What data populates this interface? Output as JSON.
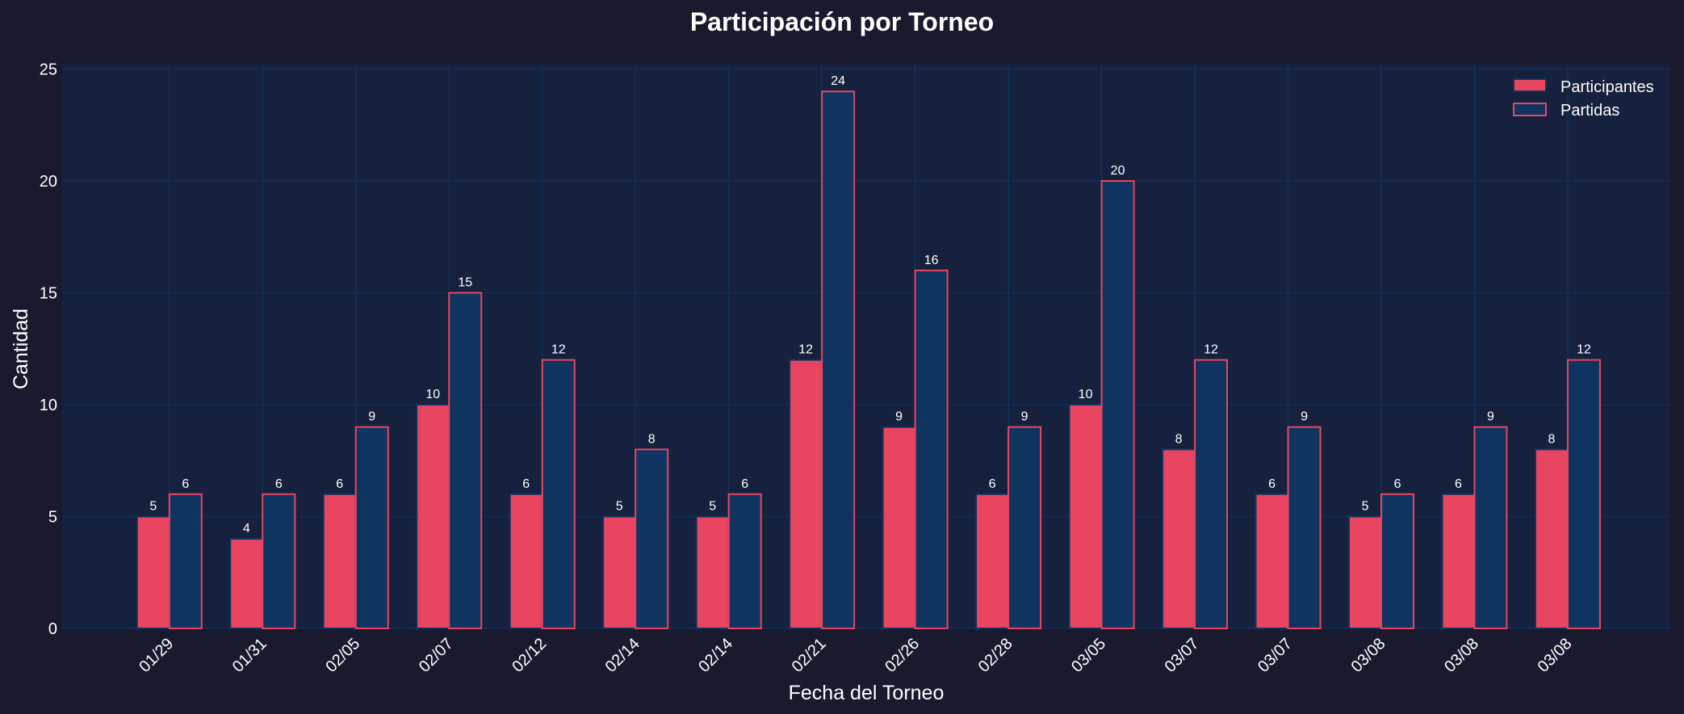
{
  "chart_data": {
    "type": "bar",
    "title": "Participación por Torneo",
    "xlabel": "Fecha del Torneo",
    "ylabel": "Cantidad",
    "ylim": [
      0,
      25.2
    ],
    "yticks": [
      0,
      5,
      10,
      15,
      20,
      25
    ],
    "grid": true,
    "legend_placement": "top-right",
    "categories": [
      "01/29",
      "01/31",
      "02/05",
      "02/07",
      "02/12",
      "02/14",
      "02/14",
      "02/21",
      "02/26",
      "02/28",
      "03/05",
      "03/07",
      "03/07",
      "03/08",
      "03/08",
      "03/08"
    ],
    "series": [
      {
        "name": "Participantes",
        "values": [
          5,
          4,
          6,
          10,
          6,
          5,
          5,
          12,
          9,
          6,
          10,
          8,
          6,
          5,
          6,
          8
        ],
        "color": "#e94560",
        "edge": "#0f3460"
      },
      {
        "name": "Partidas",
        "values": [
          6,
          6,
          9,
          15,
          12,
          8,
          6,
          24,
          16,
          9,
          20,
          12,
          9,
          6,
          9,
          12
        ],
        "color": "#0f3460",
        "edge": "#e94560"
      }
    ],
    "colors": {
      "background": "#1a1a2e",
      "plot_background": "#16213e",
      "grid": "#0f3460"
    }
  }
}
